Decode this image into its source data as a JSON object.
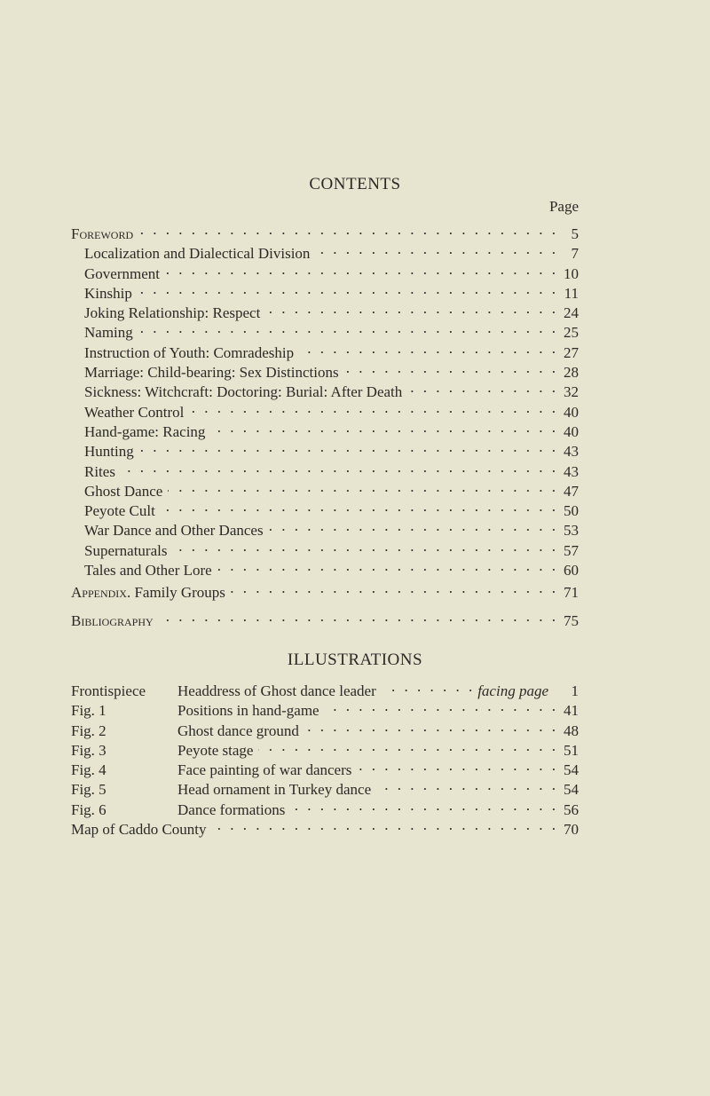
{
  "contents": {
    "title": "CONTENTS",
    "page_header": "Page",
    "entries": [
      {
        "label": "Foreword",
        "page": "5",
        "style": "smallcaps"
      },
      {
        "label": "Localization and Dialectical Division",
        "page": "7"
      },
      {
        "label": "Government",
        "page": "10"
      },
      {
        "label": "Kinship",
        "page": "11"
      },
      {
        "label": "Joking Relationship: Respect",
        "page": "24"
      },
      {
        "label": "Naming",
        "page": "25"
      },
      {
        "label": "Instruction of Youth: Comradeship",
        "page": "27"
      },
      {
        "label": "Marriage: Child-bearing: Sex Distinctions",
        "page": "28"
      },
      {
        "label": "Sickness: Witchcraft: Doctoring: Burial: After Death",
        "page": "32"
      },
      {
        "label": "Weather Control",
        "page": "40"
      },
      {
        "label": "Hand-game: Racing",
        "page": "40"
      },
      {
        "label": "Hunting",
        "page": "43"
      },
      {
        "label": "Rites",
        "page": "43"
      },
      {
        "label": "Ghost Dance",
        "page": "47"
      },
      {
        "label": "Peyote Cult",
        "page": "50"
      },
      {
        "label": "War Dance and Other Dances",
        "page": "53"
      },
      {
        "label": "Supernaturals",
        "page": "57"
      },
      {
        "label": "Tales and Other Lore",
        "page": "60"
      }
    ],
    "appendix": {
      "label": "Appendix.",
      "rest": " Family Groups",
      "page": "71"
    },
    "bibliography": {
      "label": "Bibliography",
      "page": "75"
    }
  },
  "illustrations": {
    "title": "ILLUSTRATIONS",
    "entries": [
      {
        "fig": "Frontispiece",
        "caption": "Headdress of Ghost dance leader",
        "note": "facing page",
        "page": "1"
      },
      {
        "fig": "Fig. 1",
        "caption": "Positions in hand-game",
        "page": "41"
      },
      {
        "fig": "Fig. 2",
        "caption": "Ghost dance ground",
        "page": "48"
      },
      {
        "fig": "Fig. 3",
        "caption": "Peyote stage",
        "page": "51"
      },
      {
        "fig": "Fig. 4",
        "caption": "Face painting of war dancers",
        "page": "54"
      },
      {
        "fig": "Fig. 5",
        "caption": "Head ornament in Turkey dance",
        "page": "54"
      },
      {
        "fig": "Fig. 6",
        "caption": "Dance formations",
        "page": "56"
      }
    ],
    "map": {
      "label": "Map of Caddo County",
      "page": "70"
    }
  }
}
